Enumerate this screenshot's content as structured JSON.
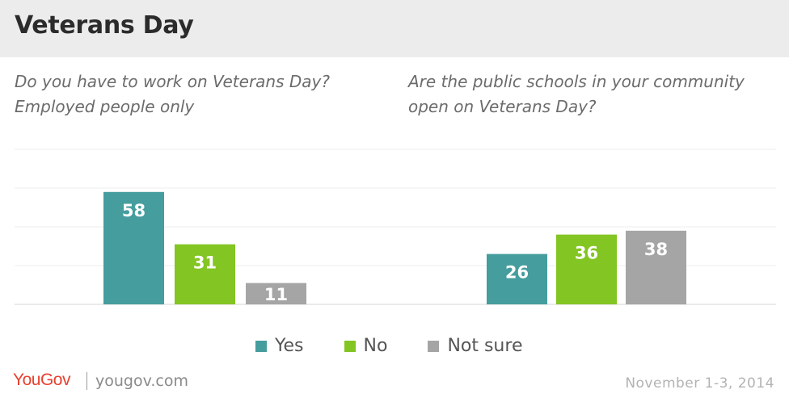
{
  "header": {
    "title": "Veterans Day"
  },
  "colors": {
    "yes": "#459d9e",
    "no": "#83c522",
    "not_sure": "#a5a5a5",
    "header_bg": "#ececec",
    "brand": "#e8402f"
  },
  "footer": {
    "logo": "YouGov",
    "url": "yougov.com",
    "date": "November 1-3, 2014"
  },
  "legend": [
    {
      "label": "Yes",
      "color": "#459d9e"
    },
    {
      "label": "No",
      "color": "#83c522"
    },
    {
      "label": "Not sure",
      "color": "#a5a5a5"
    }
  ],
  "chart_data": [
    {
      "type": "bar",
      "subtitle": [
        "Do you have to work on Veterans Day?",
        "Employed people only"
      ],
      "categories": [
        "Yes",
        "No",
        "Not sure"
      ],
      "values": [
        58,
        31,
        11
      ],
      "ylim": [
        0,
        80
      ],
      "grid": true
    },
    {
      "type": "bar",
      "subtitle": [
        "Are the public schools in your community",
        "open on Veterans Day?"
      ],
      "categories": [
        "Yes",
        "No",
        "Not sure"
      ],
      "values": [
        26,
        36,
        38
      ],
      "ylim": [
        0,
        80
      ],
      "grid": true
    }
  ]
}
